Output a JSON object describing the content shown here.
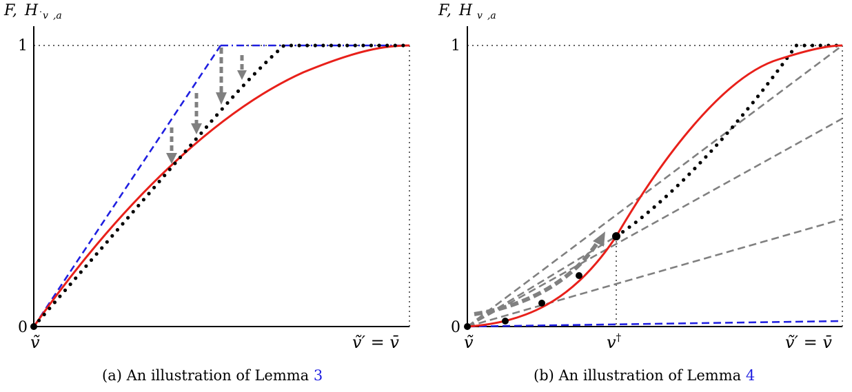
{
  "left": {
    "ylabel": {
      "F": "F,",
      "H": "H",
      "sub_v": "v",
      "sub_rest": ",a"
    },
    "tick_zero": "0",
    "tick_one": "1",
    "x_start_label": "ṽ",
    "x_end_label": "ṽ′ = v̄",
    "caption_text": "(a) An illustration of Lemma ",
    "caption_ref": "3"
  },
  "right": {
    "ylabel": {
      "F": "F,",
      "H": "H",
      "sub_v": "v",
      "sub_rest": ",a"
    },
    "tick_zero": "0",
    "tick_one": "1",
    "x_start_label": "ṽ",
    "x_mid_label": "v",
    "x_mid_sup": "†",
    "x_end_label": "ṽ′ = v̄",
    "caption_text": "(b) An illustration of Lemma ",
    "caption_ref": "4"
  },
  "colors": {
    "red": "#e8201a",
    "blue": "#1f1fe0",
    "gray": "#808080",
    "black": "#000000",
    "link": "#1f1fe0"
  }
}
